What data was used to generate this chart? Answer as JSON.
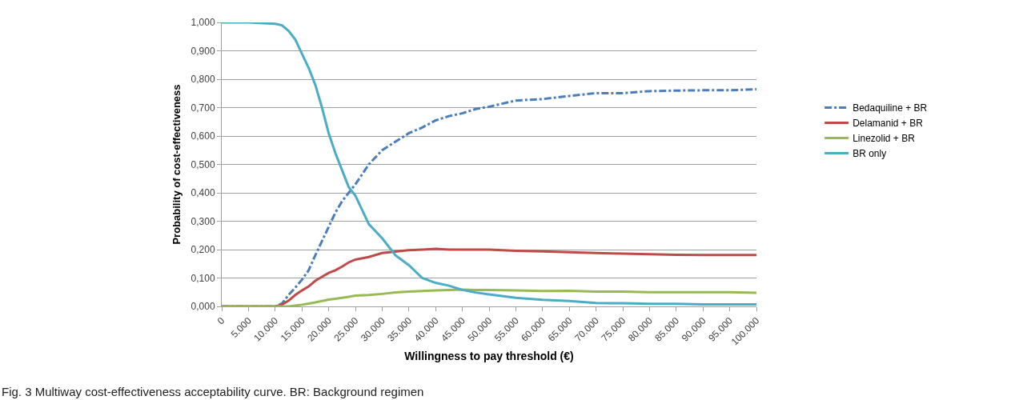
{
  "chart_data": {
    "type": "line",
    "xlabel": "Willingness to pay threshold (€)",
    "ylabel": "Probability of cost-effectiveness",
    "annotations": [
      "Fig. 3 Multiway cost-effectiveness acceptability curve. BR: Background regimen"
    ],
    "x": [
      0,
      5000,
      10000,
      11250,
      12500,
      13750,
      15000,
      16250,
      17500,
      18750,
      20000,
      21250,
      22500,
      23750,
      25000,
      27500,
      30000,
      32500,
      35000,
      37500,
      40000,
      42500,
      45000,
      47500,
      50000,
      55000,
      60000,
      65000,
      70000,
      75000,
      80000,
      85000,
      90000,
      95000,
      100000
    ],
    "series": [
      {
        "name": "Bedaquiline + BR",
        "color": "#4a7ebb",
        "line_style": "dashdot",
        "values": [
          0,
          0,
          0,
          0.01,
          0.04,
          0.066,
          0.094,
          0.127,
          0.18,
          0.23,
          0.28,
          0.33,
          0.37,
          0.4,
          0.43,
          0.5,
          0.55,
          0.58,
          0.61,
          0.63,
          0.655,
          0.67,
          0.68,
          0.695,
          0.703,
          0.725,
          0.73,
          0.741,
          0.751,
          0.751,
          0.758,
          0.76,
          0.761,
          0.761,
          0.765
        ]
      },
      {
        "name": "Delamanid + BR",
        "color": "#be4b48",
        "line_style": "solid",
        "values": [
          0,
          0,
          0,
          0.006,
          0.02,
          0.04,
          0.056,
          0.07,
          0.09,
          0.104,
          0.118,
          0.127,
          0.14,
          0.155,
          0.165,
          0.174,
          0.188,
          0.193,
          0.198,
          0.2,
          0.203,
          0.2,
          0.2,
          0.2,
          0.2,
          0.196,
          0.194,
          0.191,
          0.188,
          0.186,
          0.184,
          0.182,
          0.181,
          0.181,
          0.181
        ]
      },
      {
        "name": "Linezolid + BR",
        "color": "#98b954",
        "line_style": "solid",
        "values": [
          0,
          0,
          0,
          0,
          0,
          0.003,
          0.006,
          0.01,
          0.014,
          0.019,
          0.024,
          0.027,
          0.03,
          0.034,
          0.038,
          0.04,
          0.044,
          0.049,
          0.052,
          0.054,
          0.056,
          0.058,
          0.059,
          0.058,
          0.058,
          0.056,
          0.054,
          0.055,
          0.052,
          0.052,
          0.05,
          0.05,
          0.05,
          0.05,
          0.048
        ]
      },
      {
        "name": "BR only",
        "color": "#4bacc6",
        "line_style": "solid",
        "values": [
          1,
          1,
          0.995,
          0.99,
          0.97,
          0.94,
          0.89,
          0.84,
          0.78,
          0.7,
          0.61,
          0.54,
          0.48,
          0.42,
          0.39,
          0.29,
          0.24,
          0.18,
          0.145,
          0.1,
          0.083,
          0.073,
          0.058,
          0.049,
          0.042,
          0.03,
          0.023,
          0.019,
          0.012,
          0.011,
          0.009,
          0.009,
          0.007,
          0.007,
          0.007
        ]
      }
    ],
    "xlim": [
      0,
      100000
    ],
    "xticks": [
      0,
      {
        "value": 5000,
        "label": "5.000"
      },
      {
        "value": 10000,
        "label": "10.000"
      },
      {
        "value": 15000,
        "label": "15.000"
      },
      {
        "value": 20000,
        "label": "20.000"
      },
      {
        "value": 25000,
        "label": "25.000"
      },
      {
        "value": 30000,
        "label": "30.000"
      },
      {
        "value": 35000,
        "label": "35.000"
      },
      {
        "value": 40000,
        "label": "40.000"
      },
      {
        "value": 45000,
        "label": "45.000"
      },
      {
        "value": 50000,
        "label": "50.000"
      },
      {
        "value": 55000,
        "label": "55.000"
      },
      {
        "value": 60000,
        "label": "60.000"
      },
      {
        "value": 65000,
        "label": "65.000"
      },
      {
        "value": 70000,
        "label": "70.000"
      },
      {
        "value": 75000,
        "label": "75.000"
      },
      {
        "value": 80000,
        "label": "80.000"
      },
      {
        "value": 85000,
        "label": "85.000"
      },
      {
        "value": 90000,
        "label": "90.000"
      },
      {
        "value": 95000,
        "label": "95.000"
      },
      {
        "value": 100000,
        "label": "100.000"
      }
    ],
    "ylim": [
      0,
      1
    ],
    "yticks": [
      {
        "value": 0,
        "label": "0,000"
      },
      {
        "value": 0.1,
        "label": "0,100"
      },
      {
        "value": 0.2,
        "label": "0,200"
      },
      {
        "value": 0.3,
        "label": "0,300"
      },
      {
        "value": 0.4,
        "label": "0,400"
      },
      {
        "value": 0.5,
        "label": "0,500"
      },
      {
        "value": 0.6,
        "label": "0,600"
      },
      {
        "value": 0.7,
        "label": "0,700"
      },
      {
        "value": 0.8,
        "label": "0,800"
      },
      {
        "value": 0.9,
        "label": "0,900"
      },
      {
        "value": 1,
        "label": "1,000"
      }
    ],
    "grid": "y",
    "legend": "right",
    "marker": "none"
  }
}
